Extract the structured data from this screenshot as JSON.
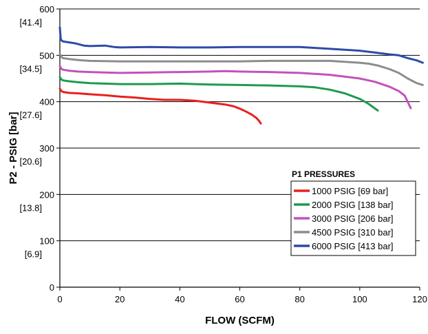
{
  "chart_data": {
    "type": "line",
    "title": "",
    "xlabel": "FLOW (SCFM)",
    "ylabel": "P2 - PSIG [bar]",
    "xlim": [
      0,
      120
    ],
    "ylim": [
      0,
      600
    ],
    "x_ticks": [
      {
        "value": 0,
        "label": "0"
      },
      {
        "value": 20,
        "label": "20"
      },
      {
        "value": 40,
        "label": "40"
      },
      {
        "value": 60,
        "label": "60"
      },
      {
        "value": 80,
        "label": "80"
      },
      {
        "value": 100,
        "label": "100"
      },
      {
        "value": 120,
        "label": "120"
      }
    ],
    "y_ticks": [
      {
        "value": 0,
        "label": "0",
        "sublabel": ""
      },
      {
        "value": 100,
        "label": "100",
        "sublabel": "[6.9]"
      },
      {
        "value": 200,
        "label": "200",
        "sublabel": "[13.8]"
      },
      {
        "value": 300,
        "label": "300",
        "sublabel": "[20.6]"
      },
      {
        "value": 400,
        "label": "400",
        "sublabel": "[27.6]"
      },
      {
        "value": 500,
        "label": "500",
        "sublabel": "[34.5]"
      },
      {
        "value": 600,
        "label": "600",
        "sublabel": "[41.4]"
      }
    ],
    "grid": "horizontal",
    "legend": {
      "title": "P1 PRESSURES",
      "placement": "lower-right"
    },
    "series": [
      {
        "name": "1000 PSIG [69 bar]",
        "color": "#e8201e",
        "points": [
          [
            0,
            428
          ],
          [
            0.5,
            423
          ],
          [
            1,
            421
          ],
          [
            3,
            419
          ],
          [
            6,
            418
          ],
          [
            10,
            416
          ],
          [
            15,
            414
          ],
          [
            20,
            411
          ],
          [
            25,
            409
          ],
          [
            30,
            406
          ],
          [
            35,
            404
          ],
          [
            40,
            404
          ],
          [
            45,
            402
          ],
          [
            50,
            398
          ],
          [
            55,
            394
          ],
          [
            58,
            390
          ],
          [
            60,
            385
          ],
          [
            62,
            379
          ],
          [
            64,
            372
          ],
          [
            65.5,
            365
          ],
          [
            66.5,
            358
          ],
          [
            67,
            353
          ]
        ]
      },
      {
        "name": "2000 PSIG [138 bar]",
        "color": "#1e9a4e",
        "points": [
          [
            0,
            453
          ],
          [
            0.5,
            448
          ],
          [
            1,
            446
          ],
          [
            3,
            444
          ],
          [
            6,
            442
          ],
          [
            10,
            440
          ],
          [
            15,
            439
          ],
          [
            20,
            438
          ],
          [
            30,
            438
          ],
          [
            40,
            439
          ],
          [
            45,
            438
          ],
          [
            50,
            437
          ],
          [
            60,
            436
          ],
          [
            70,
            435
          ],
          [
            80,
            433
          ],
          [
            85,
            431
          ],
          [
            90,
            426
          ],
          [
            95,
            418
          ],
          [
            100,
            406
          ],
          [
            103,
            395
          ],
          [
            106,
            381
          ]
        ]
      },
      {
        "name": "3000 PSIG [206 bar]",
        "color": "#c252b8",
        "points": [
          [
            0,
            477
          ],
          [
            0.5,
            471
          ],
          [
            1,
            469
          ],
          [
            3,
            467
          ],
          [
            6,
            465
          ],
          [
            10,
            464
          ],
          [
            20,
            462
          ],
          [
            30,
            463
          ],
          [
            40,
            464
          ],
          [
            50,
            465
          ],
          [
            55,
            466
          ],
          [
            60,
            465
          ],
          [
            70,
            464
          ],
          [
            80,
            462
          ],
          [
            90,
            458
          ],
          [
            100,
            450
          ],
          [
            105,
            443
          ],
          [
            110,
            432
          ],
          [
            113,
            423
          ],
          [
            115,
            413
          ],
          [
            117,
            386
          ]
        ]
      },
      {
        "name": "4500 PSIG [310 bar]",
        "color": "#8c8c8c",
        "points": [
          [
            0,
            503
          ],
          [
            0.5,
            497
          ],
          [
            1,
            494
          ],
          [
            3,
            492
          ],
          [
            6,
            490
          ],
          [
            10,
            488
          ],
          [
            20,
            487
          ],
          [
            30,
            487
          ],
          [
            40,
            487
          ],
          [
            50,
            487
          ],
          [
            60,
            487
          ],
          [
            70,
            488
          ],
          [
            80,
            488
          ],
          [
            90,
            488
          ],
          [
            95,
            486
          ],
          [
            100,
            484
          ],
          [
            103,
            482
          ],
          [
            106,
            478
          ],
          [
            110,
            470
          ],
          [
            113,
            462
          ],
          [
            116,
            450
          ],
          [
            119,
            440
          ],
          [
            121,
            436
          ]
        ]
      },
      {
        "name": "6000 PSIG [413 bar]",
        "color": "#2c4ba8",
        "points": [
          [
            0,
            560
          ],
          [
            0.3,
            535
          ],
          [
            0.6,
            532
          ],
          [
            1,
            530
          ],
          [
            3,
            528
          ],
          [
            5,
            526
          ],
          [
            8,
            521
          ],
          [
            10,
            520
          ],
          [
            15,
            521
          ],
          [
            18,
            518
          ],
          [
            20,
            517
          ],
          [
            30,
            518
          ],
          [
            40,
            517
          ],
          [
            50,
            517
          ],
          [
            60,
            518
          ],
          [
            70,
            518
          ],
          [
            80,
            518
          ],
          [
            90,
            514
          ],
          [
            100,
            510
          ],
          [
            105,
            506
          ],
          [
            110,
            502
          ],
          [
            113,
            500
          ],
          [
            116,
            494
          ],
          [
            119,
            489
          ],
          [
            121,
            484
          ]
        ]
      }
    ]
  }
}
